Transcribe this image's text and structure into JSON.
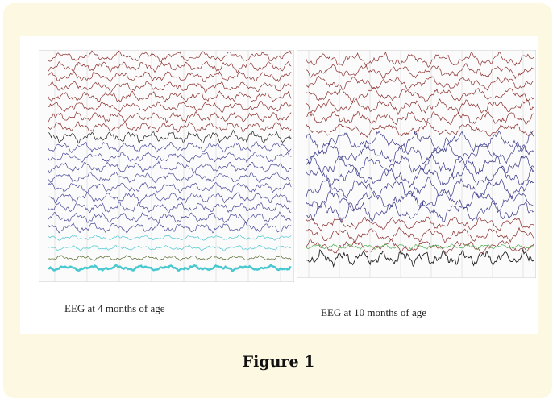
{
  "figure": {
    "captions": [
      "EEG at 4 months of age",
      "EEG at 10 months of age"
    ],
    "label": "Figure 1"
  }
}
